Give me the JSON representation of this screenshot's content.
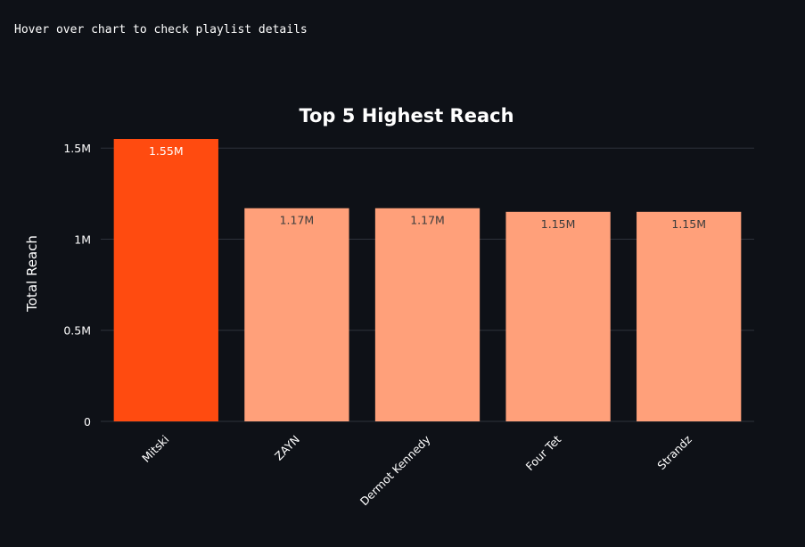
{
  "hint_text": "Hover over chart to check playlist details",
  "chart_data": {
    "type": "bar",
    "title": "Top 5 Highest Reach",
    "xlabel": "",
    "ylabel": "Total Reach",
    "ylim": [
      0,
      1550000
    ],
    "yticks": [
      0,
      500000,
      1000000,
      1500000
    ],
    "ytick_labels": [
      "0",
      "0.5M",
      "1M",
      "1.5M"
    ],
    "grid": true,
    "categories": [
      "Mitski",
      "ZAYN",
      "Dermot Kennedy",
      "Four Tet",
      "Strandz"
    ],
    "values": [
      1550000,
      1170000,
      1170000,
      1150000,
      1150000
    ],
    "data_labels": [
      "1.55M",
      "1.17M",
      "1.17M",
      "1.15M",
      "1.15M"
    ],
    "highlight_color": "#ff4b10",
    "bar_color": "#ffa07a",
    "highlight_label_color": "#ffffff",
    "bar_label_color": "#3d3d3d",
    "grid_color": "#2e323b",
    "text_color": "#ffffff"
  }
}
